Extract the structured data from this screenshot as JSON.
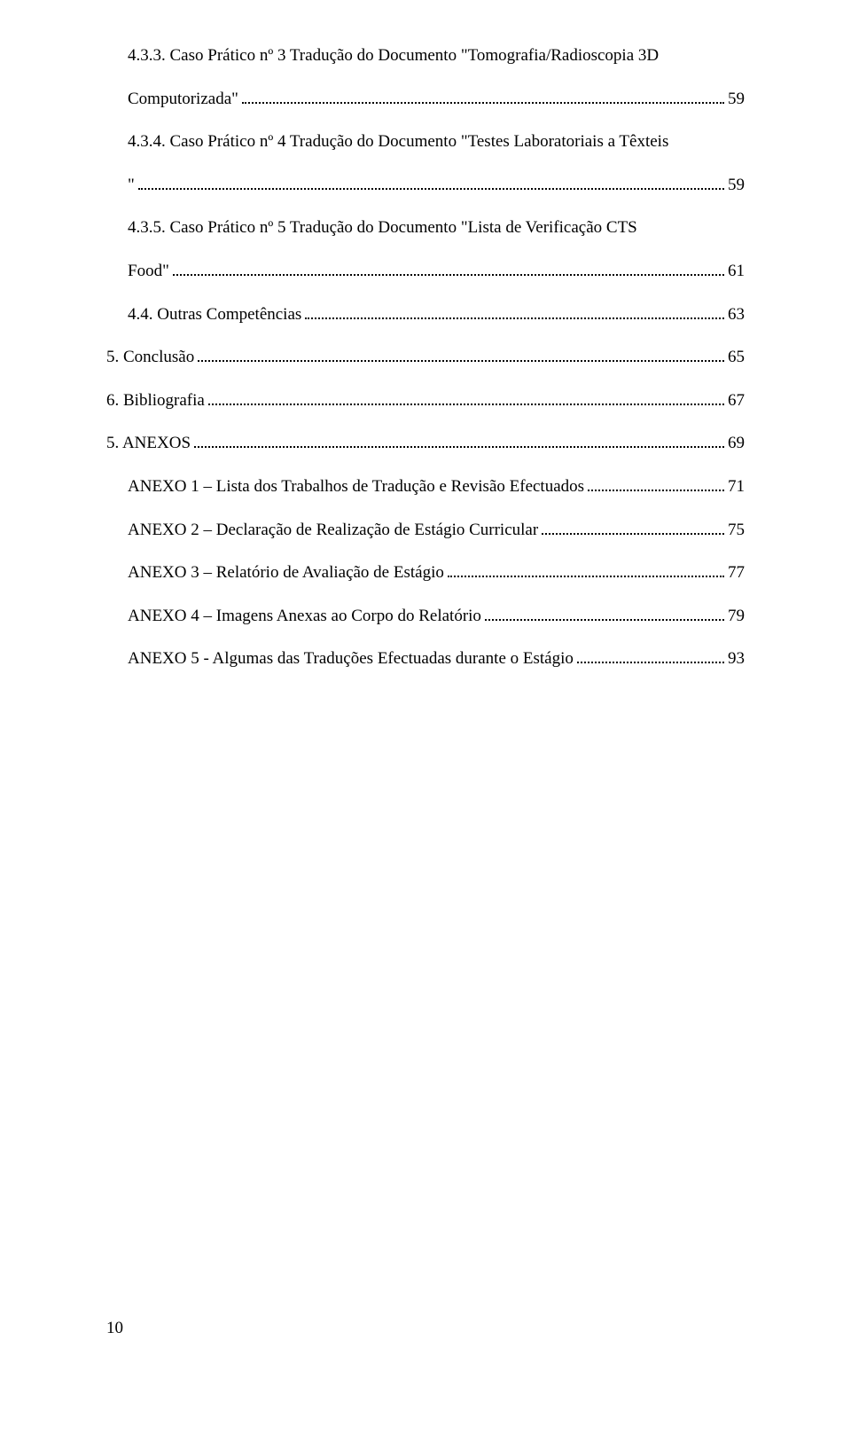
{
  "toc": {
    "entries": [
      {
        "indent": 1,
        "multiline": true,
        "label1": "4.3.3. Caso Prático nº 3 Tradução do Documento \"Tomografia/Radioscopia 3D",
        "label2": "Computorizada\"",
        "page": "59"
      },
      {
        "indent": 1,
        "multiline": true,
        "label1": "4.3.4. Caso Prático nº 4 Tradução do Documento \"Testes Laboratoriais a Têxteis",
        "label2": "\"",
        "page": "59"
      },
      {
        "indent": 1,
        "multiline": true,
        "label1": "4.3.5. Caso Prático nº 5 Tradução do Documento \"Lista de Verificação CTS",
        "label2": "Food\"",
        "page": "61"
      },
      {
        "indent": 1,
        "multiline": false,
        "label": "4.4. Outras Competências",
        "page": "63"
      },
      {
        "indent": 0,
        "multiline": false,
        "label": "5. Conclusão",
        "page": "65"
      },
      {
        "indent": 0,
        "multiline": false,
        "label": "6. Bibliografia",
        "page": "67"
      },
      {
        "indent": 0,
        "multiline": false,
        "label": "5. ANEXOS",
        "page": "69"
      },
      {
        "indent": 1,
        "multiline": false,
        "label": "ANEXO 1 – Lista dos Trabalhos de Tradução e Revisão Efectuados",
        "page": "71"
      },
      {
        "indent": 1,
        "multiline": false,
        "label": "ANEXO 2 – Declaração de Realização de Estágio Curricular",
        "page": "75"
      },
      {
        "indent": 1,
        "multiline": false,
        "label": "ANEXO 3 – Relatório de Avaliação de Estágio",
        "page": "77"
      },
      {
        "indent": 1,
        "multiline": false,
        "label": "ANEXO 4 – Imagens Anexas ao Corpo do Relatório",
        "page": "79"
      },
      {
        "indent": 1,
        "multiline": false,
        "label": "ANEXO 5 - Algumas das Traduções Efectuadas durante o Estágio",
        "page": "93"
      }
    ]
  },
  "page_number": "10",
  "styles": {
    "font_family": "Times New Roman",
    "font_size_pt": 14,
    "text_color": "#000000",
    "background_color": "#ffffff",
    "dot_leader_color": "#000000"
  }
}
